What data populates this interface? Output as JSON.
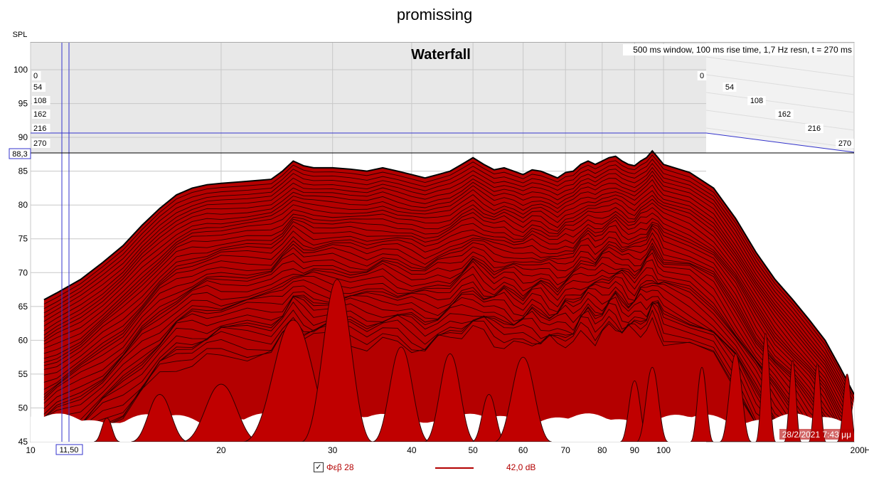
{
  "page": {
    "title": "promissing"
  },
  "chart_data": {
    "type": "area",
    "title": "Waterfall",
    "info": "500 ms window, 100 ms rise time,  1,7 Hz resn, t = 270 ms",
    "timestamp": "28/2/2021 7:43 μμ",
    "ylabel": "SPL",
    "xlabel": "",
    "x_unit": "Hz",
    "x_scale": "log",
    "xlim": [
      10,
      200
    ],
    "ylim": [
      45,
      104
    ],
    "x_ticks": [
      "10",
      "20",
      "30",
      "40",
      "50",
      "60",
      "70",
      "80",
      "90",
      "100",
      "200Hz"
    ],
    "x_tick_values": [
      10,
      20,
      30,
      40,
      50,
      60,
      70,
      80,
      90,
      100,
      200
    ],
    "y_ticks": [
      "100",
      "95",
      "90",
      "85",
      "80",
      "75",
      "70",
      "65",
      "60",
      "55",
      "50",
      "45"
    ],
    "y_tick_values": [
      100,
      95,
      90,
      85,
      80,
      75,
      70,
      65,
      60,
      55,
      50,
      45
    ],
    "time_labels": [
      "0",
      "54",
      "108",
      "162",
      "216",
      "270"
    ],
    "time_unit": "ms",
    "cursor": {
      "x_label": "11,50",
      "y_label": "88,3",
      "x": 11.5,
      "y": 88.3
    },
    "legend": {
      "label": "Φεβ 28",
      "value": "42,0 dB",
      "checked": true,
      "color": "#b30000"
    },
    "series": [
      {
        "name": "Φεβ 28",
        "x": [
          10.5,
          11,
          12,
          13,
          14,
          15,
          16,
          17,
          18,
          19,
          20,
          22,
          24,
          25,
          26,
          27,
          28,
          30,
          32,
          34,
          36,
          38,
          40,
          42,
          44,
          46,
          48,
          50,
          52,
          54,
          56,
          58,
          60,
          62,
          64,
          66,
          68,
          70,
          72,
          74,
          76,
          78,
          80,
          82,
          84,
          86,
          88,
          90,
          92,
          94,
          96,
          98,
          100,
          110,
          120,
          130,
          140,
          150,
          160,
          170,
          180,
          190,
          200
        ],
        "values": [
          66,
          67,
          69,
          71.5,
          74,
          77,
          79.5,
          81.5,
          82.5,
          83,
          83.2,
          83.5,
          83.8,
          85,
          86.5,
          85.8,
          85.5,
          85.5,
          85.3,
          85,
          85.5,
          85,
          84.5,
          84,
          84.5,
          85,
          86,
          87,
          86,
          85.2,
          85.5,
          85,
          84.5,
          85.2,
          85,
          84.5,
          84,
          84.8,
          85,
          86,
          86.5,
          86,
          86.5,
          87,
          87.2,
          86.5,
          86,
          85.8,
          86.5,
          87,
          88,
          87,
          86,
          84.8,
          82.5,
          78,
          73,
          69,
          66,
          63,
          60,
          56,
          52
        ]
      }
    ]
  }
}
